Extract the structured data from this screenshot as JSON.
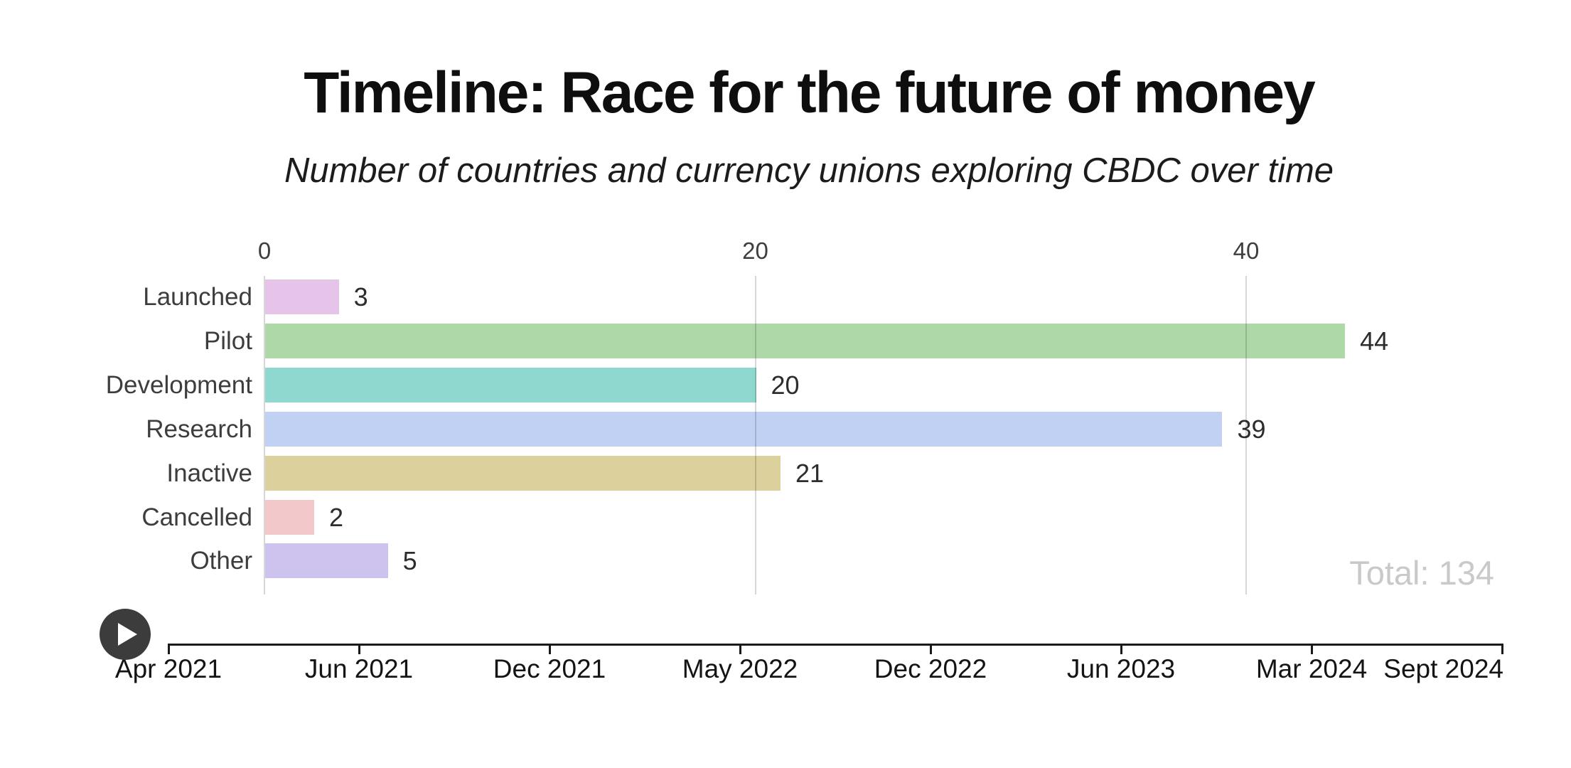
{
  "header": {
    "title": "Timeline: Race for the future of money",
    "subtitle": "Number of countries and currency unions exploring CBDC over time"
  },
  "chart_data": {
    "type": "bar",
    "orientation": "horizontal",
    "title": "Timeline: Race for the future of money",
    "subtitle": "Number of countries and currency unions exploring CBDC over time",
    "categories": [
      "Launched",
      "Pilot",
      "Development",
      "Research",
      "Inactive",
      "Cancelled",
      "Other"
    ],
    "values": [
      3,
      44,
      20,
      39,
      21,
      2,
      5
    ],
    "bar_colors": [
      "#e6c3e9",
      "#aed8a8",
      "#8ed8d0",
      "#c1d1f4",
      "#dcd09c",
      "#f3c8cb",
      "#cdc3ee"
    ],
    "x_ticks": [
      0,
      20,
      40
    ],
    "xlim": [
      0,
      50
    ],
    "grid": "vertical",
    "value_labels_shown": true,
    "total_label": "Total: 134"
  },
  "timeline": {
    "dates": [
      "Apr 2021",
      "Jun 2021",
      "Dec 2021",
      "May 2022",
      "Dec 2022",
      "Jun 2023",
      "Mar 2024",
      "Sept 2024"
    ],
    "play_icon": "play-triangle"
  },
  "colors": {
    "background": "#ffffff",
    "title": "#0e0e0e",
    "category_label": "#3d3d3d",
    "value_label": "#2d2d2d",
    "tick_label": "#3e3e3e",
    "gridline": "#d7d7d7",
    "timeline_axis": "#1a1a1a",
    "play_button": "#3c3c3c",
    "total_label": "#c9c9c9"
  }
}
